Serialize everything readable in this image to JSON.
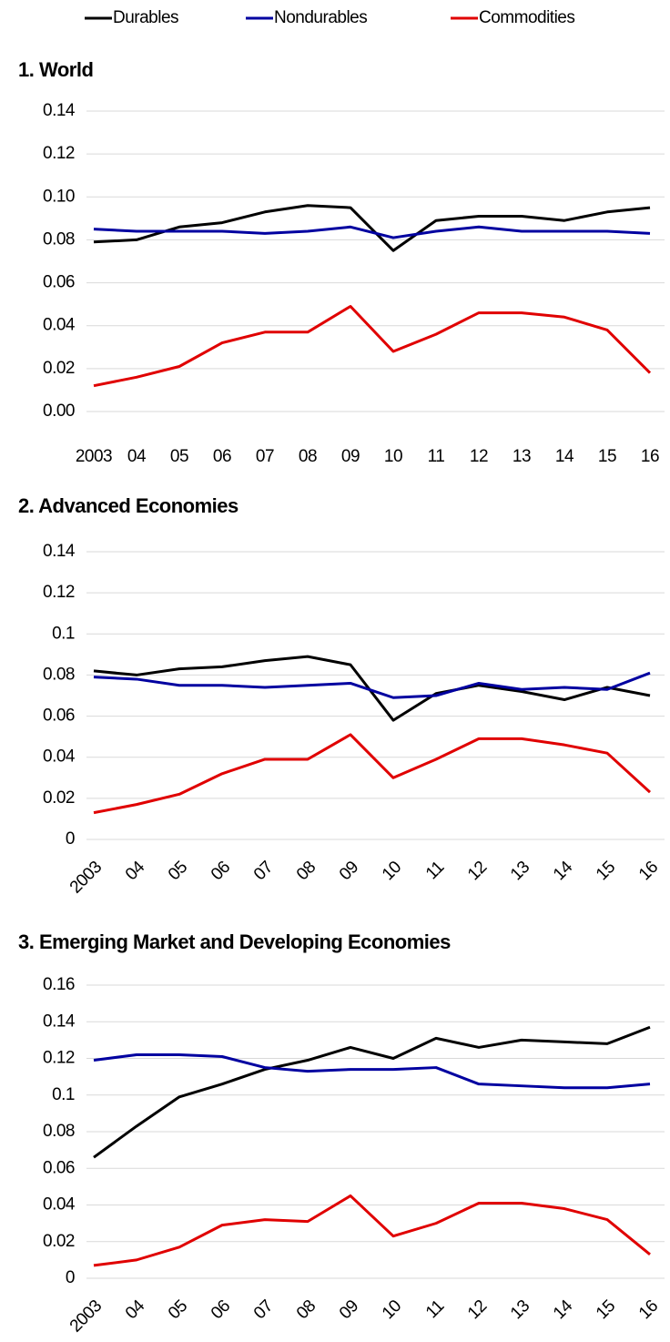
{
  "chart_data": [
    {
      "type": "line",
      "title": "1. World",
      "categories": [
        "2003",
        "04",
        "05",
        "06",
        "07",
        "08",
        "09",
        "10",
        "11",
        "12",
        "13",
        "14",
        "15",
        "16"
      ],
      "series": [
        {
          "name": "Durables",
          "color": "#000000",
          "values": [
            0.079,
            0.08,
            0.086,
            0.088,
            0.093,
            0.096,
            0.095,
            0.075,
            0.089,
            0.091,
            0.091,
            0.089,
            0.093,
            0.095
          ]
        },
        {
          "name": "Nondurables",
          "color": "#0000a0",
          "values": [
            0.085,
            0.084,
            0.084,
            0.084,
            0.083,
            0.084,
            0.086,
            0.081,
            0.084,
            0.086,
            0.084,
            0.084,
            0.084,
            0.083
          ]
        },
        {
          "name": "Commodities",
          "color": "#e00000",
          "values": [
            0.012,
            0.016,
            0.021,
            0.032,
            0.037,
            0.037,
            0.049,
            0.028,
            0.036,
            0.046,
            0.046,
            0.044,
            0.038,
            0.018
          ]
        }
      ],
      "ylim": [
        0,
        0.14
      ],
      "yticks": [
        {
          "value": 0,
          "label": "0.00"
        },
        {
          "value": 0.02,
          "label": "0.02"
        },
        {
          "value": 0.04,
          "label": "0.04"
        },
        {
          "value": 0.06,
          "label": "0.06"
        },
        {
          "value": 0.08,
          "label": "0.08"
        },
        {
          "value": 0.1,
          "label": "0.10"
        },
        {
          "value": 0.12,
          "label": "0.12"
        },
        {
          "value": 0.14,
          "label": "0.14"
        }
      ],
      "grid": true,
      "rotate_labels": false
    },
    {
      "type": "line",
      "title": "2. Advanced Economies",
      "categories": [
        "2003",
        "04",
        "05",
        "06",
        "07",
        "08",
        "09",
        "10",
        "11",
        "12",
        "13",
        "14",
        "15",
        "16"
      ],
      "series": [
        {
          "values": [
            0.082,
            0.08,
            0.083,
            0.084,
            0.087,
            0.089,
            0.085,
            0.058,
            0.071,
            0.075,
            0.072,
            0.068,
            0.074,
            0.07
          ]
        },
        {
          "values": [
            0.079,
            0.078,
            0.075,
            0.075,
            0.074,
            0.075,
            0.076,
            0.069,
            0.07,
            0.076,
            0.073,
            0.074,
            0.073,
            0.081
          ]
        },
        {
          "values": [
            0.013,
            0.017,
            0.022,
            0.032,
            0.039,
            0.039,
            0.051,
            0.03,
            0.039,
            0.049,
            0.049,
            0.046,
            0.042,
            0.023
          ]
        }
      ],
      "ylim": [
        0,
        0.14
      ],
      "yticks": [
        0,
        {
          "value": 0.02,
          "label": "0.02"
        },
        {
          "value": 0.04,
          "label": "0.04"
        },
        {
          "value": 0.06,
          "label": "0.06"
        },
        {
          "value": 0.08,
          "label": "0.08"
        },
        0.1,
        0.12,
        0.14
      ],
      "grid": true,
      "rotate_labels": true
    },
    {
      "type": "line",
      "title": "3. Emerging Market and Developing Economies",
      "categories": [
        "2003",
        "04",
        "05",
        "06",
        "07",
        "08",
        "09",
        "10",
        "11",
        "12",
        "13",
        "14",
        "15",
        "16"
      ],
      "series": [
        {
          "values": [
            0.066,
            0.083,
            0.099,
            0.106,
            0.114,
            0.119,
            0.126,
            0.12,
            0.131,
            0.126,
            0.13,
            0.129,
            0.128,
            0.137
          ]
        },
        {
          "values": [
            0.119,
            0.122,
            0.122,
            0.121,
            0.115,
            0.113,
            0.114,
            0.114,
            0.115,
            0.106,
            0.105,
            0.104,
            0.104,
            0.106
          ]
        },
        {
          "values": [
            0.007,
            0.01,
            0.017,
            0.029,
            0.032,
            0.031,
            0.045,
            0.023,
            0.03,
            0.041,
            0.041,
            0.038,
            0.032,
            0.013
          ]
        }
      ],
      "ylim": [
        0,
        0.16
      ],
      "yticks": [
        0,
        {
          "value": 0.02,
          "label": "0.02"
        },
        {
          "value": 0.04,
          "label": "0.04"
        },
        {
          "value": 0.06,
          "label": "0.06"
        },
        {
          "value": 0.08,
          "label": "0.08"
        },
        0.1,
        0.12,
        0.14,
        0.16
      ],
      "grid": true,
      "rotate_labels": true
    }
  ]
}
